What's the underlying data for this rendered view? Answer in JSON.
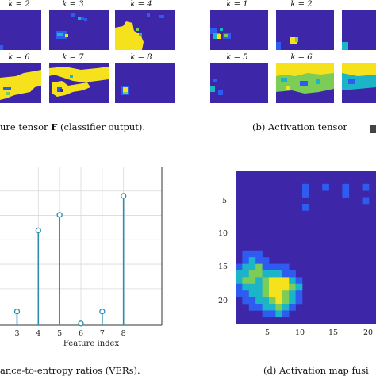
{
  "captions": {
    "a_prefix": "ure tensor ",
    "a_symbol": "F",
    "a_suffix": " (classifier output).",
    "b_prefix": "(b)  Activation tensor",
    "c_text": "ance-to-entropy ratios (VERs).",
    "d_text": "(d)  Activation map fusi"
  },
  "panel_a": {
    "labels": [
      "k = 2",
      "k = 3",
      "k = 4",
      "k = 6",
      "k = 7",
      "k = 8"
    ]
  },
  "panel_b": {
    "labels": [
      "k = 1",
      "k = 2",
      "k = 5",
      "k = 6"
    ]
  },
  "colors": {
    "dark_blue": "#3e26a8",
    "blue": "#2f5cf0",
    "cyan": "#1cb5c8",
    "green": "#7ccc58",
    "yellow": "#f5e21c",
    "stem": "#2e8ab0"
  },
  "chart_data": {
    "type": "stem",
    "title": "",
    "xlabel": "Feature index",
    "ylabel": "",
    "x_ticks": [
      "3",
      "4",
      "5",
      "6",
      "7",
      "8"
    ],
    "x": [
      3,
      4,
      5,
      6,
      7,
      8
    ],
    "values": [
      0.08,
      0.55,
      0.64,
      0.01,
      0.08,
      0.75
    ],
    "ylim": [
      0,
      0.92
    ],
    "grid": true
  },
  "panel_d": {
    "y_ticks": [
      "5",
      "10",
      "15",
      "20"
    ],
    "x_ticks": [
      "5",
      "10",
      "15",
      "20"
    ]
  }
}
